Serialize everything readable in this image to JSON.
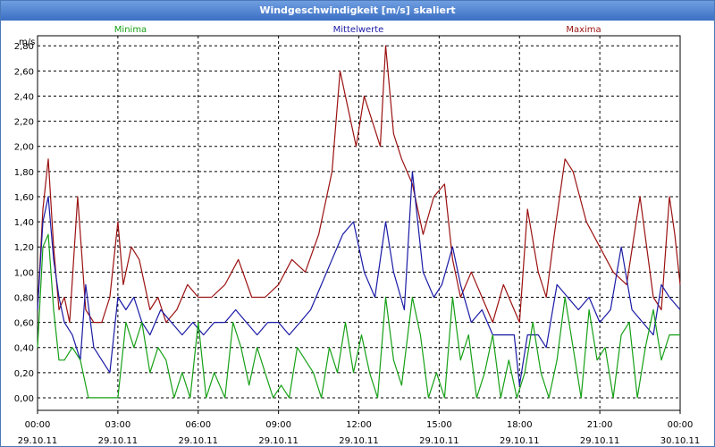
{
  "window": {
    "title": "Windgeschwindigkeit [m/s] skaliert"
  },
  "chart_data": {
    "type": "line",
    "title": "Windgeschwindigkeit [m/s] skaliert",
    "ylabel": "m/s",
    "xlabel": "",
    "ylim": [
      -0.1,
      2.88
    ],
    "xlim": [
      0,
      24
    ],
    "grid": true,
    "legend": [
      "Minima",
      "Mittelwerte",
      "Maxima"
    ],
    "y_ticks": [
      "0,00",
      "0,20",
      "0,40",
      "0,60",
      "0,80",
      "1,00",
      "1,20",
      "1,40",
      "1,60",
      "1,80",
      "2,00",
      "2,20",
      "2,40",
      "2,60",
      "2,80"
    ],
    "x_ticks": [
      {
        "time": "00:00",
        "date": "29.10.11"
      },
      {
        "time": "03:00",
        "date": "29.10.11"
      },
      {
        "time": "06:00",
        "date": "29.10.11"
      },
      {
        "time": "09:00",
        "date": "29.10.11"
      },
      {
        "time": "12:00",
        "date": "29.10.11"
      },
      {
        "time": "15:00",
        "date": "29.10.11"
      },
      {
        "time": "18:00",
        "date": "29.10.11"
      },
      {
        "time": "21:00",
        "date": "29.10.11"
      },
      {
        "time": "00:00",
        "date": "30.10.11"
      }
    ],
    "series": [
      {
        "name": "Maxima",
        "color": "#9b1111",
        "x_hours": [
          0,
          0.2,
          0.4,
          0.6,
          0.8,
          1.0,
          1.2,
          1.5,
          1.8,
          2.1,
          2.4,
          2.7,
          3.0,
          3.2,
          3.5,
          3.8,
          4.2,
          4.5,
          4.8,
          5.2,
          5.6,
          6.0,
          6.5,
          7.0,
          7.5,
          8.0,
          8.5,
          9.0,
          9.5,
          10.0,
          10.5,
          11.0,
          11.3,
          11.6,
          11.9,
          12.2,
          12.5,
          12.8,
          13.0,
          13.3,
          13.6,
          14.0,
          14.4,
          14.8,
          15.2,
          15.5,
          15.8,
          16.2,
          16.6,
          17.0,
          17.4,
          17.8,
          18.0,
          18.3,
          18.7,
          19.0,
          19.3,
          19.7,
          20.0,
          20.5,
          21.0,
          21.5,
          22.0,
          22.5,
          23.0,
          23.3,
          23.6,
          23.8,
          24.0
        ],
        "values": [
          0.7,
          1.5,
          1.9,
          1.2,
          0.7,
          0.8,
          0.6,
          1.6,
          0.7,
          0.6,
          0.6,
          0.8,
          1.4,
          0.9,
          1.2,
          1.1,
          0.7,
          0.8,
          0.6,
          0.7,
          0.9,
          0.8,
          0.8,
          0.9,
          1.1,
          0.8,
          0.8,
          0.9,
          1.1,
          1.0,
          1.3,
          1.8,
          2.6,
          2.3,
          2.0,
          2.4,
          2.2,
          2.0,
          2.8,
          2.1,
          1.9,
          1.7,
          1.3,
          1.6,
          1.7,
          1.1,
          0.8,
          1.0,
          0.8,
          0.6,
          0.9,
          0.7,
          0.6,
          1.5,
          1.0,
          0.8,
          1.3,
          1.9,
          1.8,
          1.4,
          1.2,
          1.0,
          0.9,
          1.6,
          0.8,
          0.7,
          1.6,
          1.3,
          0.9
        ]
      },
      {
        "name": "Mittelwerte",
        "color": "#1a1aa6",
        "x_hours": [
          0,
          0.2,
          0.4,
          0.6,
          0.8,
          1.0,
          1.3,
          1.6,
          1.8,
          2.1,
          2.4,
          2.7,
          3.0,
          3.3,
          3.6,
          3.9,
          4.2,
          4.6,
          5.0,
          5.4,
          5.8,
          6.2,
          6.6,
          7.0,
          7.4,
          7.8,
          8.2,
          8.6,
          9.0,
          9.4,
          9.8,
          10.2,
          10.6,
          11.0,
          11.4,
          11.8,
          12.2,
          12.6,
          13.0,
          13.3,
          13.7,
          14.0,
          14.4,
          14.8,
          15.1,
          15.5,
          15.8,
          16.2,
          16.6,
          17.0,
          17.4,
          17.8,
          18.0,
          18.3,
          18.7,
          19.0,
          19.4,
          19.8,
          20.2,
          20.6,
          21.0,
          21.4,
          21.8,
          22.2,
          22.6,
          23.0,
          23.3,
          23.6,
          24.0
        ],
        "values": [
          0.7,
          1.4,
          1.6,
          1.1,
          0.8,
          0.6,
          0.5,
          0.3,
          0.9,
          0.4,
          0.3,
          0.2,
          0.8,
          0.7,
          0.8,
          0.6,
          0.5,
          0.7,
          0.6,
          0.5,
          0.6,
          0.5,
          0.6,
          0.6,
          0.7,
          0.6,
          0.5,
          0.6,
          0.6,
          0.5,
          0.6,
          0.7,
          0.9,
          1.1,
          1.3,
          1.4,
          1.0,
          0.8,
          1.4,
          1.0,
          0.7,
          1.8,
          1.0,
          0.8,
          0.9,
          1.2,
          0.9,
          0.6,
          0.7,
          0.5,
          0.5,
          0.5,
          0.1,
          0.5,
          0.5,
          0.4,
          0.9,
          0.8,
          0.7,
          0.8,
          0.6,
          0.7,
          1.2,
          0.7,
          0.6,
          0.5,
          0.9,
          0.8,
          0.7
        ]
      },
      {
        "name": "Minima",
        "color": "#16a016",
        "x_hours": [
          0,
          0.2,
          0.4,
          0.6,
          0.8,
          1.0,
          1.3,
          1.6,
          1.9,
          2.2,
          2.5,
          2.8,
          3.0,
          3.3,
          3.6,
          3.9,
          4.2,
          4.5,
          4.8,
          5.1,
          5.4,
          5.7,
          6.0,
          6.3,
          6.6,
          7.0,
          7.3,
          7.6,
          7.9,
          8.2,
          8.5,
          8.8,
          9.1,
          9.4,
          9.7,
          10.0,
          10.3,
          10.6,
          10.9,
          11.2,
          11.5,
          11.8,
          12.1,
          12.4,
          12.7,
          13.0,
          13.3,
          13.6,
          14.0,
          14.3,
          14.6,
          14.9,
          15.2,
          15.5,
          15.8,
          16.1,
          16.4,
          16.7,
          17.0,
          17.3,
          17.6,
          17.9,
          18.2,
          18.5,
          18.8,
          19.1,
          19.4,
          19.7,
          20.0,
          20.3,
          20.6,
          20.9,
          21.2,
          21.5,
          21.8,
          22.1,
          22.4,
          22.7,
          23.0,
          23.3,
          23.6,
          24.0
        ],
        "values": [
          0.4,
          1.2,
          1.3,
          0.7,
          0.3,
          0.3,
          0.4,
          0.3,
          0.0,
          0.0,
          0.0,
          0.0,
          0.0,
          0.6,
          0.4,
          0.6,
          0.2,
          0.4,
          0.3,
          0.0,
          0.2,
          0.0,
          0.6,
          0.0,
          0.2,
          0.0,
          0.6,
          0.4,
          0.1,
          0.4,
          0.2,
          0.0,
          0.1,
          0.0,
          0.4,
          0.3,
          0.2,
          0.0,
          0.4,
          0.2,
          0.6,
          0.2,
          0.5,
          0.2,
          0.0,
          0.8,
          0.3,
          0.1,
          0.8,
          0.5,
          0.0,
          0.2,
          0.0,
          0.8,
          0.3,
          0.5,
          0.0,
          0.2,
          0.5,
          0.0,
          0.3,
          0.0,
          0.2,
          0.6,
          0.2,
          0.0,
          0.3,
          0.8,
          0.4,
          0.0,
          0.7,
          0.3,
          0.4,
          0.0,
          0.5,
          0.6,
          0.0,
          0.4,
          0.7,
          0.3,
          0.5,
          0.5
        ]
      }
    ]
  }
}
